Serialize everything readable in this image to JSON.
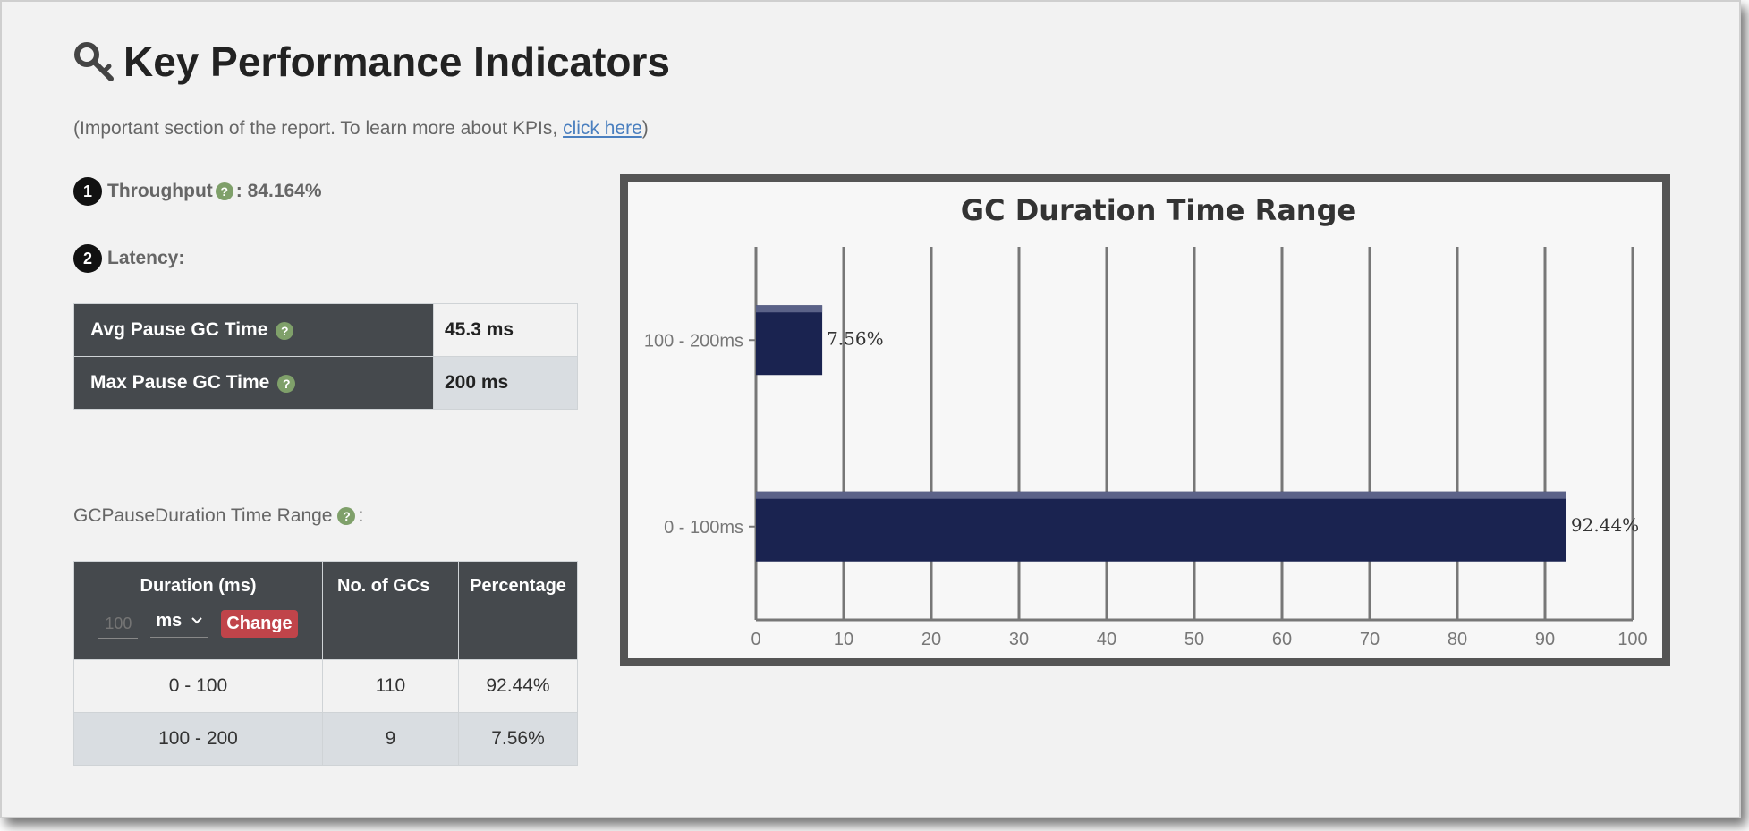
{
  "header": {
    "title": "Key Performance Indicators",
    "subtitle_prefix": "(Important section of the report. To learn more about KPIs, ",
    "subtitle_link": "click here",
    "subtitle_suffix": ")"
  },
  "throughput": {
    "number": "1",
    "label": "Throughput",
    "value": " : 84.164%"
  },
  "latency": {
    "number": "2",
    "label": "Latency:",
    "rows": [
      {
        "label": "Avg Pause GC Time",
        "value": "45.3 ms"
      },
      {
        "label": "Max Pause GC Time",
        "value": "200 ms"
      }
    ]
  },
  "range_section": {
    "label": "GCPauseDuration Time Range",
    "label_suffix": ":",
    "table": {
      "headers": {
        "duration": "Duration (ms)",
        "count": "No. of GCs",
        "percentage": "Percentage"
      },
      "interval_placeholder": "100",
      "unit": "ms",
      "change_button": "Change",
      "rows": [
        {
          "duration": "0 - 100",
          "count": "110",
          "percentage": "92.44%"
        },
        {
          "duration": "100 - 200",
          "count": "9",
          "percentage": "7.56%"
        }
      ]
    }
  },
  "help_glyph": "?",
  "icons": {
    "title": "key-icon",
    "help": "question-circle-icon",
    "dropdown": "chevron-down-icon"
  },
  "colors": {
    "bar": "#1a2350",
    "change_button": "#c0444a",
    "help_icon": "#7fa06a",
    "header_bg": "#45494d"
  },
  "chart_data": {
    "type": "bar",
    "orientation": "horizontal",
    "title": "GC Duration Time Range",
    "categories": [
      "100 - 200ms",
      "0 - 100ms"
    ],
    "values": [
      7.56,
      92.44
    ],
    "data_labels": [
      "7.56%",
      "92.44%"
    ],
    "xlim": [
      0,
      100
    ],
    "xticks": [
      0,
      10,
      20,
      30,
      40,
      50,
      60,
      70,
      80,
      90,
      100
    ],
    "grid": "vertical",
    "legend": "none"
  }
}
